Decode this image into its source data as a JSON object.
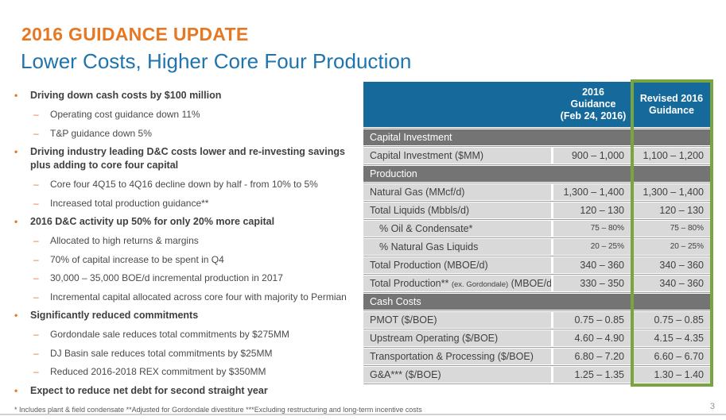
{
  "slide": {
    "title": "2016 GUIDANCE UPDATE",
    "subtitle": "Lower Costs, Higher Core Four Production",
    "footnote": "* Includes plant & field condensate **Adjusted for Gordondale divestiture ***Excluding restructuring and long-term incentive costs",
    "page_number": "3"
  },
  "colors": {
    "title_orange": "#E87722",
    "subtitle_blue": "#1F74AD",
    "table_header_blue": "#15699B",
    "highlight_green": "#7AA43F",
    "section_row_gray": "#747474",
    "data_row_gray": "#D9D9D9",
    "body_text": "#404040"
  },
  "bullets": {
    "level1_marker": "•",
    "level2_marker": "–",
    "items": [
      {
        "level": 1,
        "text": "Driving down cash costs by $100 million"
      },
      {
        "level": 2,
        "text": "Operating cost guidance down 11%"
      },
      {
        "level": 2,
        "text": "T&P guidance down 5%"
      },
      {
        "level": 1,
        "text": "Driving industry leading D&C costs lower and re-investing savings plus adding to core four capital"
      },
      {
        "level": 2,
        "text": "Core four 4Q15 to 4Q16 decline down by half - from 10% to 5%"
      },
      {
        "level": 2,
        "text": "Increased total production guidance**"
      },
      {
        "level": 1,
        "text": "2016 D&C activity up 50% for only 20% more capital"
      },
      {
        "level": 2,
        "text": "Allocated to high returns & margins"
      },
      {
        "level": 2,
        "text": "70% of capital increase to be spent in Q4"
      },
      {
        "level": 2,
        "text": "30,000 – 35,000 BOE/d incremental production in 2017"
      },
      {
        "level": 2,
        "text": "Incremental capital allocated across core four with majority to Permian"
      },
      {
        "level": 1,
        "text": "Significantly reduced commitments"
      },
      {
        "level": 2,
        "text": "Gordondale sale reduces total commitments by $275MM"
      },
      {
        "level": 2,
        "text": "DJ Basin sale reduces total commitments by $25MM"
      },
      {
        "level": 2,
        "text": "Reduced 2016-2018 REX commitment by $350MM"
      },
      {
        "level": 1,
        "text": "Expect to reduce net debt for second straight year"
      }
    ]
  },
  "table": {
    "headers": {
      "col2_lines": [
        "2016",
        "Guidance",
        "(Feb 24, 2016)"
      ],
      "col3_lines": [
        "Revised 2016",
        "Guidance"
      ]
    },
    "rows": [
      {
        "type": "section",
        "label": "Capital Investment"
      },
      {
        "type": "data",
        "label": "Capital Investment ($MM)",
        "old": "900 – 1,000",
        "new": "1,100 – 1,200"
      },
      {
        "type": "section",
        "label": "Production"
      },
      {
        "type": "data",
        "label": "Natural Gas (MMcf/d)",
        "old": "1,300 – 1,400",
        "new": "1,300 – 1,400"
      },
      {
        "type": "data",
        "label": "Total Liquids (Mbbls/d)",
        "old": "120 – 130",
        "new": "120 – 130"
      },
      {
        "type": "data",
        "label": "% Oil & Condensate*",
        "old": "75 – 80%",
        "new": "75 – 80%"
      },
      {
        "type": "data",
        "label": "% Natural Gas Liquids",
        "old": "20 – 25%",
        "new": "20 – 25%"
      },
      {
        "type": "data",
        "label": "Total Production (MBOE/d)",
        "old": "340 – 360",
        "new": "340 – 360"
      },
      {
        "type": "data",
        "label": "Total Production**",
        "label_small": "(ex. Gordondale)",
        "label_suffix": "(MBOE/d)",
        "old": "330 – 350",
        "new": "340 – 360"
      },
      {
        "type": "section",
        "label": "Cash Costs"
      },
      {
        "type": "data",
        "label": "PMOT ($/BOE)",
        "old": "0.75 – 0.85",
        "new": "0.75 – 0.85"
      },
      {
        "type": "data",
        "label": "Upstream Operating ($/BOE)",
        "old": "4.60 – 4.90",
        "new": "4.15 – 4.35"
      },
      {
        "type": "data",
        "label": "Transportation & Processing ($/BOE)",
        "old": "6.80 – 7.20",
        "new": "6.60 – 6.70"
      },
      {
        "type": "data",
        "label": "G&A*** ($/BOE)",
        "old": "1.25 – 1.35",
        "new": "1.30 – 1.40"
      }
    ]
  }
}
